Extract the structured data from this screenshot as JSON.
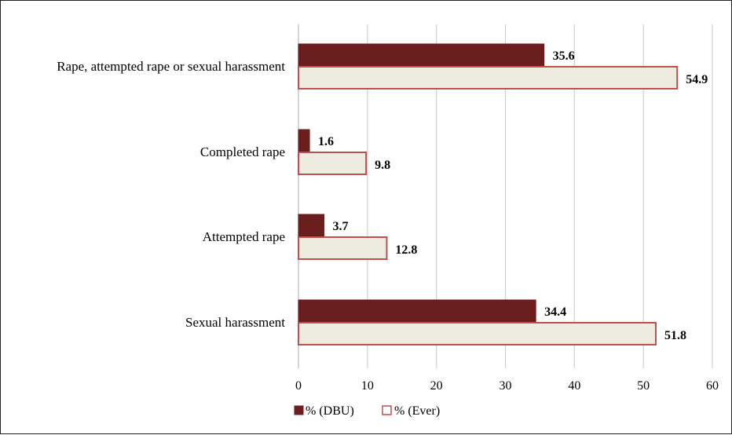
{
  "chart_data": {
    "type": "bar",
    "orientation": "horizontal",
    "categories": [
      "Rape, attempted rape or sexual harassment",
      "Completed rape",
      "Attempted rape",
      "Sexual harassment"
    ],
    "series": [
      {
        "name": "% (DBU)",
        "values": [
          35.6,
          1.6,
          3.7,
          34.4
        ],
        "color": "#6B1E1E"
      },
      {
        "name": "% (Ever)",
        "values": [
          54.9,
          9.8,
          12.8,
          51.8
        ],
        "color": "#EEEBE1",
        "border": "#C0504D"
      }
    ],
    "xticks": [
      0,
      10,
      20,
      30,
      40,
      50,
      60
    ],
    "xlim": [
      0,
      60
    ],
    "grid": true,
    "legend": "bottom",
    "title": "",
    "xlabel": "",
    "ylabel": ""
  }
}
